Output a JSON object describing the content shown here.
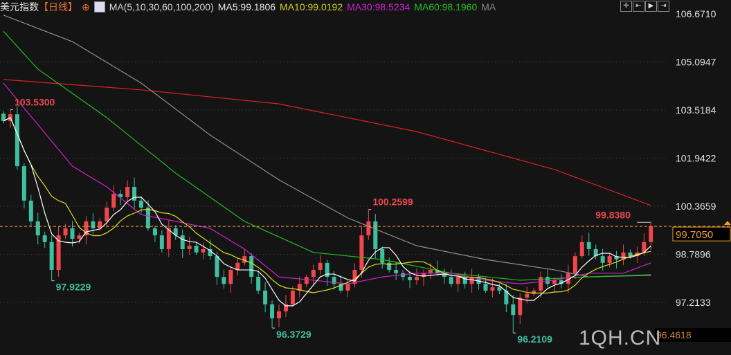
{
  "header": {
    "name": "美元指数",
    "period": "【日线】",
    "ma_title": "MA(5,10,30,60,100,200)",
    "ma5": "MA5:99.1806",
    "ma10": "MA10:99.0192",
    "ma30": "MA30:98.5234",
    "ma60": "MA60:98.1960",
    "ma_more": "MA"
  },
  "toolbar": [
    "crosshair-icon",
    "range-left-icon",
    "play-icon",
    "exit-icon"
  ],
  "watermark": "1QH.CN",
  "colors": {
    "up": "#f0464c",
    "down": "#3fbf9f",
    "ma5": "#ffffff",
    "ma10": "#e0e020",
    "ma30": "#d020d0",
    "ma60": "#20c020",
    "ma100": "#909090",
    "ma200": "#e02020",
    "current": "#f0a030"
  },
  "chart_data": {
    "type": "candlestick",
    "yaxis_ticks": [
      "106.6710",
      "105.0947",
      "103.5184",
      "101.9422",
      "100.3659",
      "98.7896",
      "97.2133"
    ],
    "ylim": [
      96.4618,
      106.671
    ],
    "bottom_label": "96.4618",
    "current_price": "99.7050",
    "first_open": 103.4,
    "closes": [
      103.16,
      103.38,
      101.68,
      100.55,
      99.87,
      99.41,
      99.19,
      98.28,
      99.41,
      99.64,
      99.3,
      99.41,
      99.87,
      99.64,
      99.87,
      100.32,
      100.77,
      100.66,
      101.0,
      100.55,
      100.32,
      99.64,
      99.41,
      98.96,
      99.64,
      99.41,
      98.96,
      99.07,
      98.85,
      98.96,
      98.73,
      98.05,
      97.82,
      98.28,
      98.51,
      98.73,
      98.05,
      97.6,
      97.15,
      96.69,
      96.92,
      97.15,
      97.6,
      97.82,
      98.05,
      98.28,
      98.51,
      98.05,
      97.82,
      97.6,
      97.82,
      98.28,
      99.41,
      99.87,
      98.96,
      98.51,
      98.28,
      98.17,
      98.05,
      97.94,
      98.05,
      98.17,
      98.28,
      98.17,
      98.05,
      97.82,
      98.05,
      97.82,
      98.05,
      97.82,
      97.6,
      97.71,
      97.6,
      97.15,
      96.8,
      97.37,
      97.49,
      97.6,
      98.05,
      97.82,
      97.94,
      97.82,
      98.17,
      98.73,
      99.19,
      98.96,
      98.73,
      98.51,
      98.73,
      98.62,
      98.85,
      98.73,
      98.85,
      99.19,
      99.71
    ],
    "extremes": [
      {
        "index": 1,
        "type": "high",
        "value": "103.5300"
      },
      {
        "index": 7,
        "type": "low",
        "value": "97.9229"
      },
      {
        "index": 39,
        "type": "low",
        "value": "96.3729"
      },
      {
        "index": 53,
        "type": "high",
        "value": "100.2599"
      },
      {
        "index": 74,
        "type": "low",
        "value": "96.2109"
      },
      {
        "index": 94,
        "type": "high",
        "value": "99.8380"
      }
    ],
    "ma_keypoints": {
      "ma200": [
        [
          0,
          104.52
        ],
        [
          20,
          104.18
        ],
        [
          40,
          103.72
        ],
        [
          60,
          102.81
        ],
        [
          80,
          101.57
        ],
        [
          94,
          100.39
        ]
      ],
      "ma100": [
        [
          0,
          106.63
        ],
        [
          10,
          105.76
        ],
        [
          20,
          104.4
        ],
        [
          30,
          102.7
        ],
        [
          40,
          101.23
        ],
        [
          50,
          99.98
        ],
        [
          60,
          99.07
        ],
        [
          70,
          98.62
        ],
        [
          80,
          98.28
        ],
        [
          85,
          98.05
        ],
        [
          94,
          98.1
        ]
      ],
      "ma60": [
        [
          0,
          106.1
        ],
        [
          5,
          104.86
        ],
        [
          15,
          103.27
        ],
        [
          25,
          101.45
        ],
        [
          35,
          99.87
        ],
        [
          45,
          98.85
        ],
        [
          55,
          98.62
        ],
        [
          65,
          98.17
        ],
        [
          75,
          97.94
        ],
        [
          85,
          98.05
        ],
        [
          94,
          98.12
        ]
      ],
      "ma30": [
        [
          0,
          104.4
        ],
        [
          5,
          103.04
        ],
        [
          10,
          101.68
        ],
        [
          15,
          101.0
        ],
        [
          20,
          100.09
        ],
        [
          25,
          99.87
        ],
        [
          30,
          99.64
        ],
        [
          35,
          98.96
        ],
        [
          40,
          98.05
        ],
        [
          45,
          97.94
        ],
        [
          50,
          97.82
        ],
        [
          55,
          98.05
        ],
        [
          60,
          98.17
        ],
        [
          65,
          98.17
        ],
        [
          70,
          97.94
        ],
        [
          75,
          97.82
        ],
        [
          80,
          97.94
        ],
        [
          85,
          98.17
        ],
        [
          90,
          98.17
        ],
        [
          94,
          98.51
        ]
      ]
    }
  }
}
